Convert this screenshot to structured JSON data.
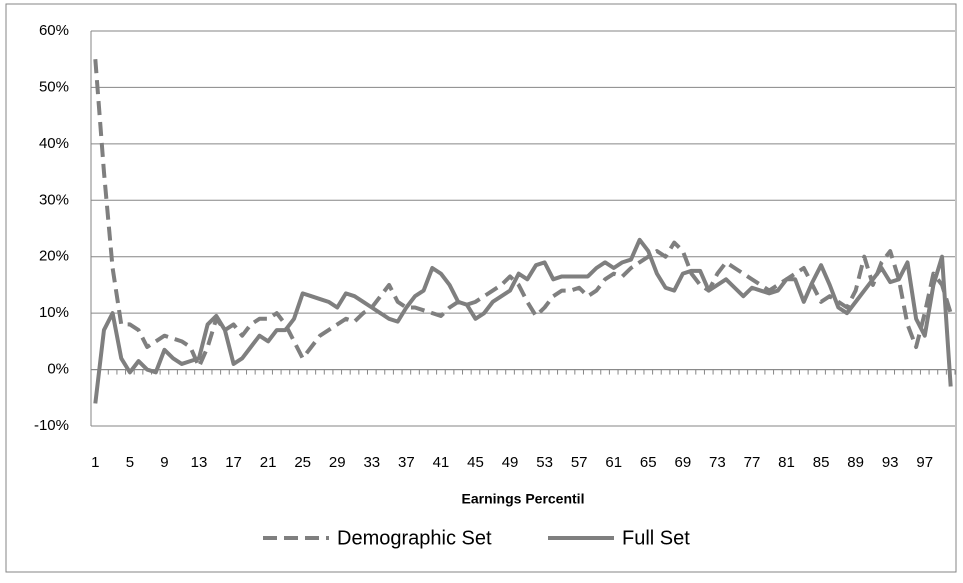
{
  "chart_data": {
    "type": "line",
    "x_label": "Earnings Percentil",
    "categories": [
      1,
      null,
      null,
      null,
      5,
      null,
      null,
      null,
      9,
      null,
      null,
      null,
      13,
      null,
      null,
      null,
      17,
      null,
      null,
      null,
      21,
      null,
      null,
      null,
      25,
      null,
      null,
      null,
      29,
      null,
      null,
      null,
      33,
      null,
      null,
      null,
      37,
      null,
      null,
      null,
      41,
      null,
      null,
      null,
      45,
      null,
      null,
      null,
      49,
      null,
      null,
      null,
      53,
      null,
      null,
      null,
      57,
      null,
      null,
      null,
      61,
      null,
      null,
      null,
      65,
      null,
      null,
      null,
      69,
      null,
      null,
      null,
      73,
      null,
      null,
      null,
      77,
      null,
      null,
      null,
      81,
      null,
      null,
      null,
      85,
      null,
      null,
      null,
      89,
      null,
      null,
      null,
      93,
      null,
      null,
      null,
      97,
      null,
      null,
      null
    ],
    "series": [
      {
        "name": "Demographic Set",
        "color": "#7f7f7f",
        "dash": true,
        "values": [
          55,
          35,
          18,
          8,
          8,
          7,
          4,
          5,
          6,
          5.5,
          5,
          4,
          0.5,
          4,
          9,
          7,
          8,
          6,
          8,
          9,
          9,
          10,
          8,
          5,
          2,
          4,
          6,
          7,
          8,
          9,
          8.5,
          10,
          11,
          13,
          15,
          12,
          11,
          11,
          10.5,
          10,
          9.5,
          11,
          12,
          11.5,
          12,
          13,
          14,
          15,
          16.5,
          15,
          12,
          9.5,
          11,
          13,
          14,
          14,
          14.5,
          13,
          14,
          16,
          17,
          16.5,
          18,
          19,
          20,
          21,
          20,
          22.5,
          21,
          17,
          15,
          14,
          17,
          19,
          18,
          17,
          16,
          15,
          14,
          15,
          16,
          17,
          18,
          15,
          12,
          13,
          12,
          11,
          14,
          20,
          15,
          19,
          21,
          16,
          8,
          4,
          10,
          17,
          15,
          10
        ]
      },
      {
        "name": "Full Set",
        "color": "#7f7f7f",
        "dash": false,
        "values": [
          -6,
          7,
          10,
          2,
          -0.5,
          1.5,
          0,
          -0.5,
          3.5,
          2,
          1,
          1.5,
          2,
          8,
          9.5,
          7,
          1,
          2,
          4,
          6,
          5,
          7,
          7,
          9,
          13.5,
          13,
          12.5,
          12,
          11,
          13.5,
          13,
          12,
          11,
          10,
          9,
          8.5,
          11,
          13,
          14,
          18,
          17,
          15,
          12,
          11.5,
          9,
          10,
          12,
          13,
          14,
          17,
          16,
          18.5,
          19,
          16,
          16.5,
          16.5,
          16.5,
          16.5,
          18,
          19,
          18,
          19,
          19.5,
          23,
          21,
          17,
          14.5,
          14,
          17,
          17.5,
          17.5,
          14,
          15,
          16,
          14.5,
          13,
          14.5,
          14,
          13.5,
          14,
          16,
          16,
          12,
          15.5,
          18.5,
          15,
          11,
          10,
          12,
          14,
          16,
          18,
          15.5,
          16,
          19,
          9,
          6,
          15,
          20,
          -3
        ]
      }
    ],
    "ylim": [
      -10,
      60
    ],
    "yticks": [
      {
        "value": -10,
        "label": "-10%"
      },
      {
        "value": 0,
        "label": "0%"
      },
      {
        "value": 10,
        "label": "10%"
      },
      {
        "value": 20,
        "label": "20%"
      },
      {
        "value": 30,
        "label": "30%"
      },
      {
        "value": 40,
        "label": "40%"
      },
      {
        "value": 50,
        "label": "50%"
      },
      {
        "value": 60,
        "label": "60%"
      }
    ],
    "grid": true,
    "legend": "bottom"
  }
}
